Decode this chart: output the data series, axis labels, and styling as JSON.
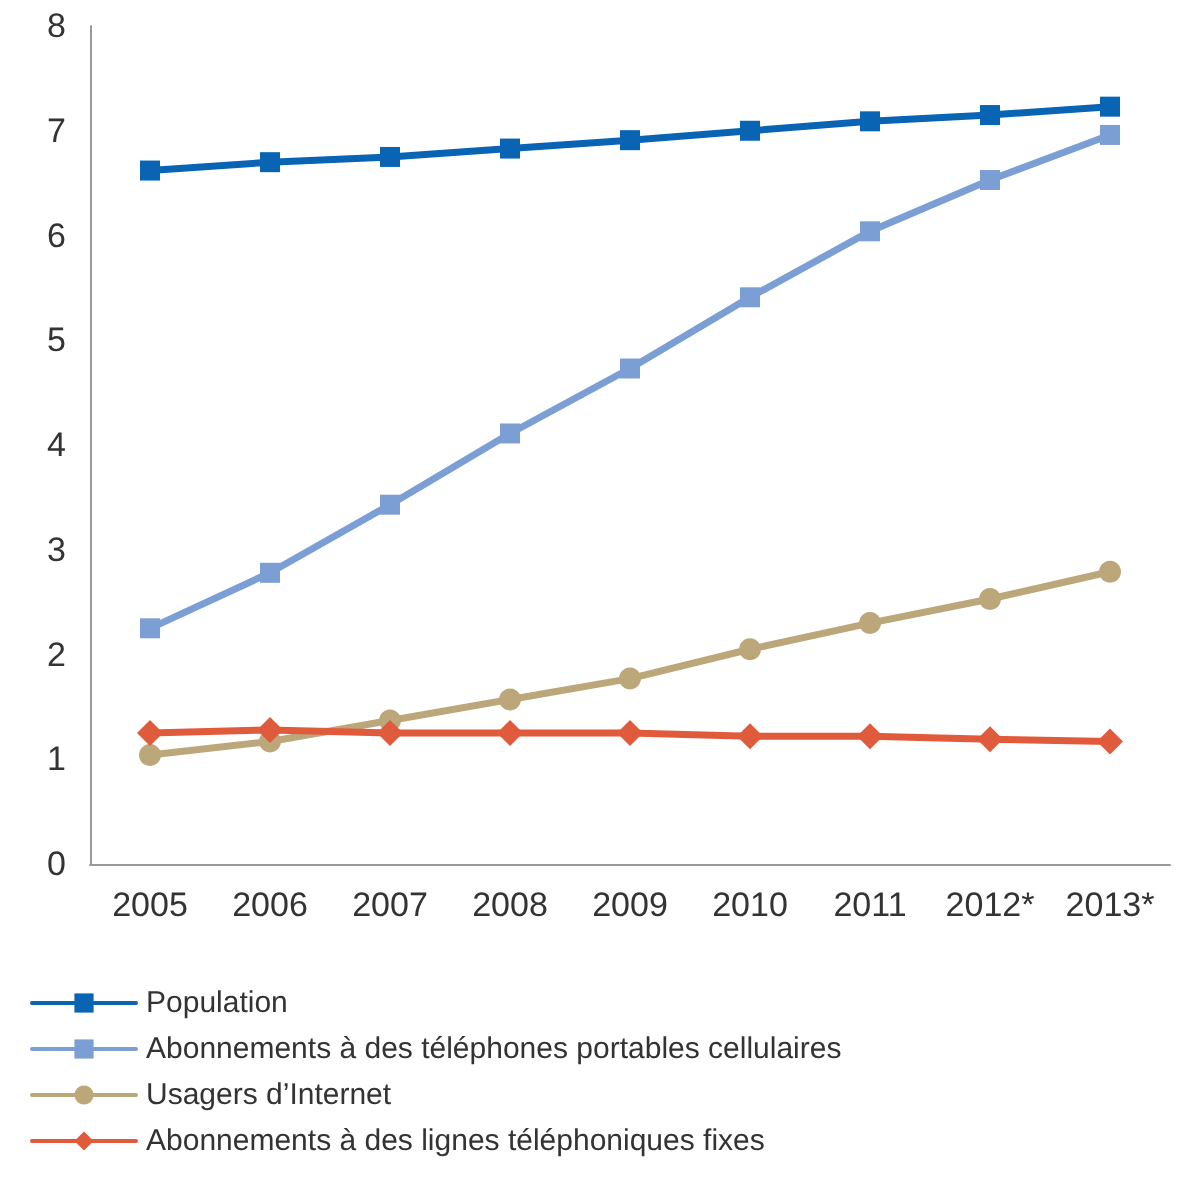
{
  "chart_data": {
    "type": "line",
    "categories": [
      "2005",
      "2006",
      "2007",
      "2008",
      "2009",
      "2010",
      "2011",
      "2012*",
      "2013*"
    ],
    "series": [
      {
        "name": "Population",
        "color": "#0a64b4",
        "marker": "square",
        "values": [
          6.62,
          6.7,
          6.75,
          6.83,
          6.91,
          7.0,
          7.09,
          7.15,
          7.23
        ]
      },
      {
        "name": "Abonnements à des téléphones portables cellulaires",
        "color": "#7b9fd4",
        "marker": "square",
        "values": [
          2.25,
          2.78,
          3.43,
          4.11,
          4.73,
          5.41,
          6.04,
          6.53,
          6.96
        ]
      },
      {
        "name": "Usagers d’Internet",
        "color": "#bca77a",
        "marker": "circle",
        "values": [
          1.04,
          1.17,
          1.37,
          1.57,
          1.77,
          2.05,
          2.3,
          2.53,
          2.79
        ]
      },
      {
        "name": "Abonnements à des lignes téléphoniques fixes",
        "color": "#e05a3c",
        "marker": "diamond",
        "values": [
          1.25,
          1.28,
          1.25,
          1.25,
          1.25,
          1.22,
          1.22,
          1.19,
          1.17
        ]
      }
    ],
    "ylim": [
      0,
      8
    ],
    "yticks": [
      0,
      1,
      2,
      3,
      4,
      5,
      6,
      7,
      8
    ],
    "grid": false,
    "legend": "bottom",
    "line_style": "solid"
  }
}
